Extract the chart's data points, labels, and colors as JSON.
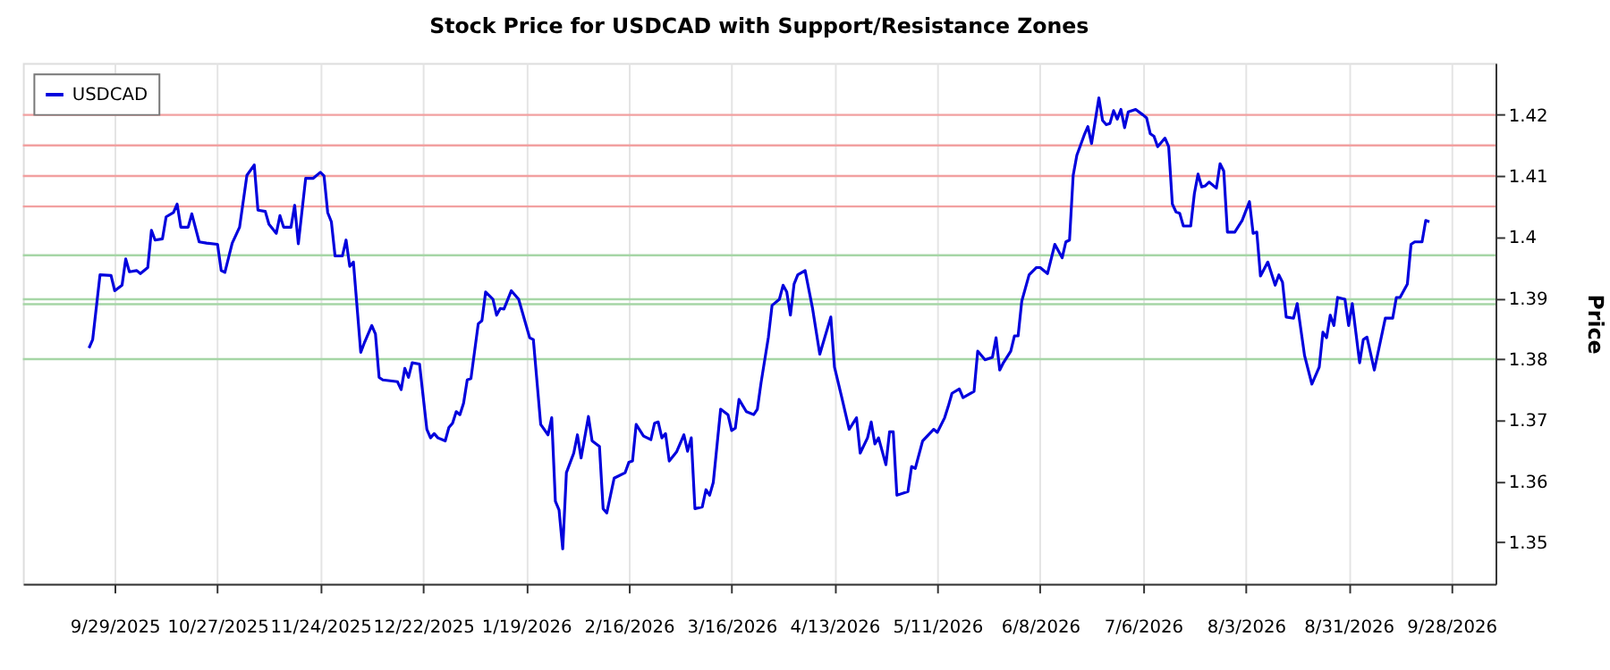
{
  "chart_data": {
    "type": "line",
    "title": "Stock Price for USDCAD with Support/Resistance Zones",
    "ylabel": "Price",
    "x": [
      "2025-09-22",
      "2025-09-23",
      "2025-09-25",
      "2025-09-28",
      "2025-09-29",
      "2025-10-01",
      "2025-10-02",
      "2025-10-03",
      "2025-10-05",
      "2025-10-06",
      "2025-10-08",
      "2025-10-09",
      "2025-10-10",
      "2025-10-12",
      "2025-10-13",
      "2025-10-15",
      "2025-10-16",
      "2025-10-17",
      "2025-10-19",
      "2025-10-20",
      "2025-10-22",
      "2025-10-24",
      "2025-10-27",
      "2025-10-28",
      "2025-10-29",
      "2025-10-31",
      "2025-11-02",
      "2025-11-04",
      "2025-11-06",
      "2025-11-07",
      "2025-11-09",
      "2025-11-10",
      "2025-11-12",
      "2025-11-13",
      "2025-11-14",
      "2025-11-16",
      "2025-11-17",
      "2025-11-18",
      "2025-11-20",
      "2025-11-22",
      "2025-11-24",
      "2025-11-25",
      "2025-11-26",
      "2025-11-27",
      "2025-11-28",
      "2025-11-30",
      "2025-12-01",
      "2025-12-02",
      "2025-12-03",
      "2025-12-05",
      "2025-12-06",
      "2025-12-08",
      "2025-12-09",
      "2025-12-10",
      "2025-12-11",
      "2025-12-15",
      "2025-12-16",
      "2025-12-17",
      "2025-12-18",
      "2025-12-19",
      "2025-12-21",
      "2025-12-23",
      "2025-12-24",
      "2025-12-25",
      "2025-12-26",
      "2025-12-28",
      "2025-12-29",
      "2025-12-30",
      "2025-12-31",
      "2026-01-01",
      "2026-01-02",
      "2026-01-03",
      "2026-01-04",
      "2026-01-06",
      "2026-01-07",
      "2026-01-08",
      "2026-01-10",
      "2026-01-11",
      "2026-01-12",
      "2026-01-13",
      "2026-01-15",
      "2026-01-17",
      "2026-01-20",
      "2026-01-21",
      "2026-01-23",
      "2026-01-25",
      "2026-01-26",
      "2026-01-27",
      "2026-01-28",
      "2026-01-29",
      "2026-01-30",
      "2026-02-01",
      "2026-02-02",
      "2026-02-03",
      "2026-02-05",
      "2026-02-06",
      "2026-02-08",
      "2026-02-09",
      "2026-02-10",
      "2026-02-12",
      "2026-02-15",
      "2026-02-16",
      "2026-02-17",
      "2026-02-18",
      "2026-02-20",
      "2026-02-22",
      "2026-02-23",
      "2026-02-24",
      "2026-02-25",
      "2026-02-26",
      "2026-02-27",
      "2026-03-01",
      "2026-03-03",
      "2026-03-04",
      "2026-03-05",
      "2026-03-06",
      "2026-03-08",
      "2026-03-09",
      "2026-03-10",
      "2026-03-11",
      "2026-03-13",
      "2026-03-15",
      "2026-03-16",
      "2026-03-17",
      "2026-03-18",
      "2026-03-20",
      "2026-03-22",
      "2026-03-23",
      "2026-03-24",
      "2026-03-26",
      "2026-03-27",
      "2026-03-29",
      "2026-03-30",
      "2026-03-31",
      "2026-04-01",
      "2026-04-02",
      "2026-04-03",
      "2026-04-05",
      "2026-04-07",
      "2026-04-09",
      "2026-04-12",
      "2026-04-13",
      "2026-04-15",
      "2026-04-17",
      "2026-04-19",
      "2026-04-20",
      "2026-04-22",
      "2026-04-23",
      "2026-04-24",
      "2026-04-25",
      "2026-04-27",
      "2026-04-28",
      "2026-04-29",
      "2026-04-30",
      "2026-05-03",
      "2026-05-04",
      "2026-05-05",
      "2026-05-07",
      "2026-05-10",
      "2026-05-11",
      "2026-05-13",
      "2026-05-14",
      "2026-05-15",
      "2026-05-17",
      "2026-05-18",
      "2026-05-21",
      "2026-05-22",
      "2026-05-24",
      "2026-05-26",
      "2026-05-27",
      "2026-05-28",
      "2026-05-29",
      "2026-05-31",
      "2026-06-01",
      "2026-06-02",
      "2026-06-03",
      "2026-06-05",
      "2026-06-07",
      "2026-06-08",
      "2026-06-10",
      "2026-06-12",
      "2026-06-14",
      "2026-06-15",
      "2026-06-16",
      "2026-06-17",
      "2026-06-18",
      "2026-06-20",
      "2026-06-21",
      "2026-06-22",
      "2026-06-24",
      "2026-06-25",
      "2026-06-26",
      "2026-06-27",
      "2026-06-28",
      "2026-06-29",
      "2026-06-30",
      "2026-07-01",
      "2026-07-02",
      "2026-07-04",
      "2026-07-06",
      "2026-07-07",
      "2026-07-08",
      "2026-07-09",
      "2026-07-10",
      "2026-07-12",
      "2026-07-13",
      "2026-07-14",
      "2026-07-15",
      "2026-07-16",
      "2026-07-17",
      "2026-07-19",
      "2026-07-20",
      "2026-07-21",
      "2026-07-22",
      "2026-07-23",
      "2026-07-24",
      "2026-07-26",
      "2026-07-27",
      "2026-07-28",
      "2026-07-29",
      "2026-07-31",
      "2026-08-02",
      "2026-08-04",
      "2026-08-05",
      "2026-08-06",
      "2026-08-07",
      "2026-08-09",
      "2026-08-11",
      "2026-08-12",
      "2026-08-13",
      "2026-08-14",
      "2026-08-16",
      "2026-08-17",
      "2026-08-19",
      "2026-08-21",
      "2026-08-23",
      "2026-08-24",
      "2026-08-25",
      "2026-08-26",
      "2026-08-27",
      "2026-08-28",
      "2026-08-30",
      "2026-08-31",
      "2026-09-01",
      "2026-09-03",
      "2026-09-04",
      "2026-09-05",
      "2026-09-07",
      "2026-09-10",
      "2026-09-12",
      "2026-09-13",
      "2026-09-14",
      "2026-09-16",
      "2026-09-17",
      "2026-09-18",
      "2026-09-20",
      "2026-09-21",
      "2026-09-22"
    ],
    "series": [
      {
        "name": "USDCAD",
        "color": "#0000dd",
        "values": [
          1.3818,
          1.3832,
          1.3938,
          1.3937,
          1.3912,
          1.3921,
          1.3964,
          1.3943,
          1.3945,
          1.394,
          1.395,
          1.4011,
          1.3995,
          1.3997,
          1.4033,
          1.404,
          1.4054,
          1.4016,
          1.4016,
          1.4038,
          1.3992,
          1.399,
          1.3988,
          1.3945,
          1.3942,
          1.399,
          1.4016,
          1.4101,
          1.4118,
          1.4044,
          1.4042,
          1.4021,
          1.4006,
          1.4035,
          1.4016,
          1.4016,
          1.4052,
          1.3989,
          1.4096,
          1.4096,
          1.4106,
          1.41,
          1.404,
          1.4025,
          1.3969,
          1.3969,
          1.3995,
          1.3952,
          1.3959,
          1.3811,
          1.3827,
          1.3855,
          1.3841,
          1.377,
          1.3766,
          1.3763,
          1.375,
          1.3785,
          1.377,
          1.3794,
          1.3792,
          1.3685,
          1.3671,
          1.3678,
          1.3671,
          1.3666,
          1.3688,
          1.3695,
          1.3714,
          1.3709,
          1.3728,
          1.3766,
          1.3768,
          1.3858,
          1.3863,
          1.391,
          1.3898,
          1.3872,
          1.3883,
          1.3882,
          1.3912,
          1.3898,
          1.3835,
          1.3832,
          1.3693,
          1.3676,
          1.3704,
          1.3567,
          1.3553,
          1.3489,
          1.3614,
          1.3646,
          1.3676,
          1.3638,
          1.3706,
          1.3666,
          1.3657,
          1.3555,
          1.3548,
          1.3605,
          1.3614,
          1.3631,
          1.3633,
          1.3693,
          1.3674,
          1.3668,
          1.3695,
          1.3697,
          1.3671,
          1.3678,
          1.3633,
          1.3648,
          1.3676,
          1.3649,
          1.3671,
          1.3555,
          1.3558,
          1.3586,
          1.3577,
          1.3598,
          1.3718,
          1.3709,
          1.3683,
          1.3687,
          1.3734,
          1.3714,
          1.3709,
          1.3718,
          1.3761,
          1.3836,
          1.3888,
          1.3898,
          1.3921,
          1.391,
          1.3872,
          1.3923,
          1.3938,
          1.3945,
          1.3884,
          1.3808,
          1.3869,
          1.3787,
          1.3737,
          1.3685,
          1.3704,
          1.3646,
          1.3671,
          1.3697,
          1.3661,
          1.3671,
          1.3627,
          1.3681,
          1.3681,
          1.3577,
          1.3583,
          1.3624,
          1.3621,
          1.3666,
          1.3685,
          1.368,
          1.3704,
          1.3723,
          1.3744,
          1.3751,
          1.3737,
          1.3747,
          1.3813,
          1.3799,
          1.3803,
          1.3835,
          1.3782,
          1.3794,
          1.3813,
          1.3838,
          1.3838,
          1.3895,
          1.3938,
          1.395,
          1.395,
          1.394,
          1.3988,
          1.3966,
          1.3992,
          1.3995,
          1.4101,
          1.4134,
          1.4167,
          1.4181,
          1.4153,
          1.4228,
          1.4191,
          1.4184,
          1.4186,
          1.4207,
          1.4193,
          1.4209,
          1.4179,
          1.4205,
          1.4209,
          1.42,
          1.4195,
          1.4169,
          1.4165,
          1.4148,
          1.4162,
          1.4148,
          1.4054,
          1.4041,
          1.4039,
          1.4018,
          1.4018,
          1.4071,
          1.4103,
          1.4082,
          1.4084,
          1.409,
          1.408,
          1.412,
          1.4108,
          1.4008,
          1.4008,
          1.4027,
          1.4058,
          1.4006,
          1.4008,
          1.3936,
          1.3959,
          1.3921,
          1.3938,
          1.3926,
          1.3869,
          1.3867,
          1.3891,
          1.3806,
          1.3759,
          1.3787,
          1.3844,
          1.3835,
          1.3872,
          1.3855,
          1.3901,
          1.3898,
          1.3855,
          1.3891,
          1.3794,
          1.3832,
          1.3836,
          1.3782,
          1.3867,
          1.3867,
          1.3901,
          1.3901,
          1.3923,
          1.3988,
          1.3992,
          1.3992,
          1.4027,
          1.4025
        ]
      }
    ],
    "xlim": [
      "2025-09-04",
      "2026-10-10"
    ],
    "xticks": [
      {
        "value": "2025-09-29",
        "label": "9/29/2025"
      },
      {
        "value": "2025-10-27",
        "label": "10/27/2025"
      },
      {
        "value": "2025-11-24",
        "label": "11/24/2025"
      },
      {
        "value": "2025-12-22",
        "label": "12/22/2025"
      },
      {
        "value": "2026-01-19",
        "label": "1/19/2026"
      },
      {
        "value": "2026-02-16",
        "label": "2/16/2026"
      },
      {
        "value": "2026-03-16",
        "label": "3/16/2026"
      },
      {
        "value": "2026-04-13",
        "label": "4/13/2026"
      },
      {
        "value": "2026-05-11",
        "label": "5/11/2026"
      },
      {
        "value": "2026-06-08",
        "label": "6/8/2026"
      },
      {
        "value": "2026-07-06",
        "label": "7/6/2026"
      },
      {
        "value": "2026-08-03",
        "label": "8/3/2026"
      },
      {
        "value": "2026-08-31",
        "label": "8/31/2026"
      },
      {
        "value": "2026-09-28",
        "label": "9/28/2026"
      }
    ],
    "ylim": [
      1.3432,
      1.4285
    ],
    "yticks": [
      1.35,
      1.36,
      1.37,
      1.38,
      1.39,
      1.4,
      1.41,
      1.42
    ],
    "ref_lines": [
      {
        "axis": "y",
        "value": 1.42,
        "color": "#f2a0a0"
      },
      {
        "axis": "y",
        "value": 1.415,
        "color": "#f2a0a0"
      },
      {
        "axis": "y",
        "value": 1.41,
        "color": "#f2a0a0"
      },
      {
        "axis": "y",
        "value": 1.405,
        "color": "#f2a0a0"
      },
      {
        "axis": "y",
        "value": 1.397,
        "color": "#a6d6a6"
      },
      {
        "axis": "y",
        "value": 1.3898,
        "color": "#a6d6a6"
      },
      {
        "axis": "y",
        "value": 1.389,
        "color": "#a6d6a6"
      },
      {
        "axis": "y",
        "value": 1.38,
        "color": "#a6d6a6"
      }
    ],
    "grid": "x",
    "legend": "top left",
    "marker": "none",
    "line_style": "solid"
  }
}
